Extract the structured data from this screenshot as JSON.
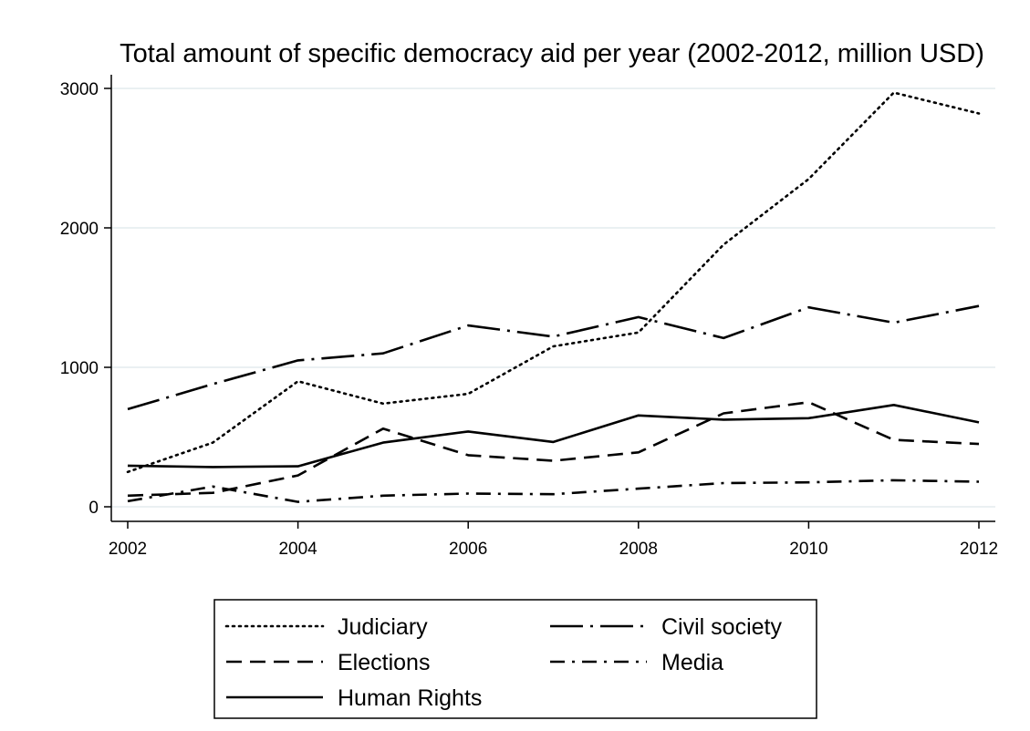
{
  "chart_data": {
    "type": "line",
    "title": "Total amount of specific democracy aid per year (2002-2012, million USD)",
    "xlabel": "",
    "ylabel": "",
    "x": [
      2002,
      2003,
      2004,
      2005,
      2006,
      2007,
      2008,
      2009,
      2010,
      2011,
      2012
    ],
    "xticks": [
      "2002",
      "2004",
      "2006",
      "2008",
      "2010",
      "2012"
    ],
    "yticks": [
      "0",
      "1000",
      "2000",
      "3000"
    ],
    "xlim": [
      2002,
      2012
    ],
    "ylim": [
      0,
      3000
    ],
    "grid": true,
    "legend_position": "bottom",
    "series": [
      {
        "name": "Judiciary",
        "dash": "dotted",
        "values": [
          250,
          460,
          900,
          740,
          810,
          1150,
          1250,
          1880,
          2350,
          2970,
          2820
        ]
      },
      {
        "name": "Civil society",
        "dash": "long-dash-dot",
        "values": [
          700,
          880,
          1050,
          1100,
          1300,
          1220,
          1360,
          1210,
          1430,
          1320,
          1440
        ]
      },
      {
        "name": "Elections",
        "dash": "dashed",
        "values": [
          80,
          100,
          225,
          560,
          370,
          330,
          390,
          670,
          750,
          480,
          450
        ]
      },
      {
        "name": "Media",
        "dash": "dash-dot",
        "values": [
          40,
          145,
          35,
          80,
          95,
          90,
          130,
          170,
          175,
          190,
          180
        ]
      },
      {
        "name": "Human Rights",
        "dash": "solid",
        "values": [
          295,
          285,
          290,
          460,
          540,
          465,
          655,
          625,
          635,
          730,
          605
        ]
      }
    ]
  }
}
